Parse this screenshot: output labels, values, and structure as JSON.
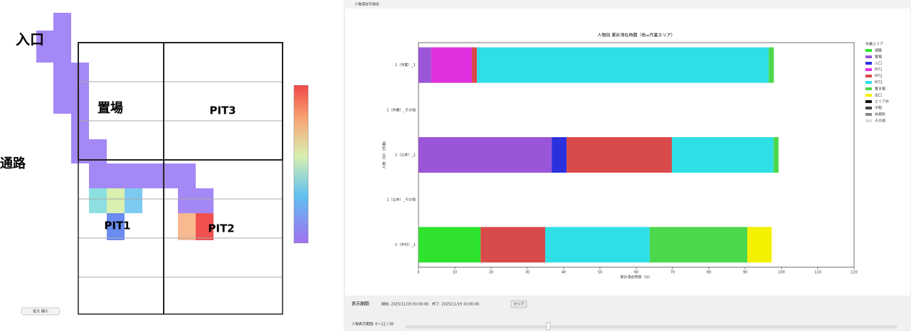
{
  "map": {
    "labels": {
      "entrance": "入口",
      "passage": "通路",
      "storage": "置場",
      "pit3": "PIT3",
      "pit1": "PIT1",
      "pit2": "PIT2"
    },
    "zoom": "拡大 縮小"
  },
  "window": {
    "title": "人物滞在可視化"
  },
  "controls": {
    "period_label": "表示期間:",
    "period": "開始: 2025/11/19 00:00:00　終了: 2025/11/19 10:00:00",
    "clear": "クリア",
    "range": "人物表示範囲: 0〜12 / 36"
  },
  "chart_data": {
    "type": "hbar-stacked",
    "title": "人物別 累計滞在時間（色=作業エリア）",
    "x_label": "累計滞在時間（分）",
    "y_label": "人物（ID）(作業)",
    "legend_title": "作業エリア",
    "categories": [
      "1（作業）_1",
      "1（作業）_その他",
      "1（山本）_1",
      "1（山本）_その他",
      "1（中村）_1"
    ],
    "xlim": [
      0,
      120
    ],
    "xticks": [
      0,
      10,
      20,
      30,
      40,
      50,
      60,
      70,
      80,
      90,
      100,
      110,
      120
    ],
    "series": [
      {
        "name": "通路",
        "color": "#2ee22e",
        "values": [
          null,
          null,
          null,
          null,
          17.1
        ]
      },
      {
        "name": "置場",
        "color": "#9a55d8",
        "values": [
          3.5,
          null,
          36.7,
          null,
          null
        ]
      },
      {
        "name": "入口",
        "color": "#2a30dd",
        "values": [
          null,
          null,
          4.1,
          null,
          null
        ]
      },
      {
        "name": "PIT1",
        "color": "#e030e0",
        "values": [
          11.2,
          null,
          null,
          null,
          null
        ]
      },
      {
        "name": "PIT2",
        "color": "#d94a4a",
        "values": [
          1.4,
          null,
          29.0,
          null,
          17.8
        ]
      },
      {
        "name": "PIT3",
        "color": "#2ee0e6",
        "values": [
          80.4,
          null,
          28.0,
          null,
          28.8
        ]
      },
      {
        "name": "置き場",
        "color": "#4cd84c",
        "values": [
          1.4,
          null,
          1.4,
          null,
          26.9
        ]
      },
      {
        "name": "出口",
        "color": "#f4f000",
        "values": [
          null,
          null,
          null,
          null,
          6.7
        ]
      },
      {
        "name": "エリア外",
        "color": "#111111",
        "values": [
          null,
          null,
          null,
          null,
          null
        ]
      },
      {
        "name": "不明",
        "color": "#444444",
        "values": [
          null,
          null,
          null,
          null,
          null
        ]
      },
      {
        "name": "休憩所",
        "color": "#888888",
        "values": [
          null,
          null,
          null,
          null,
          null
        ]
      },
      {
        "name": "その他",
        "color": "#dddddd",
        "values": [
          null,
          null,
          null,
          null,
          null
        ]
      }
    ]
  }
}
